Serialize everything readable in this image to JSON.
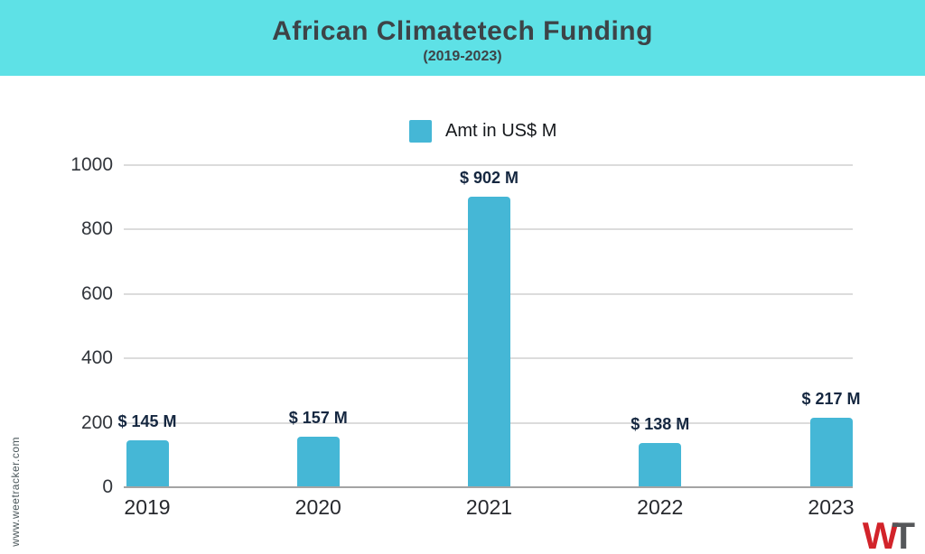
{
  "header": {
    "title": "African Climatetech Funding",
    "subtitle": "(2019-2023)",
    "background_color": "#5ee1e6"
  },
  "legend": {
    "label": "Amt in US$ M",
    "swatch_color": "#45b7d6"
  },
  "chart_data": {
    "type": "bar",
    "title": "African Climatetech Funding",
    "subtitle": "(2019-2023)",
    "categories": [
      "2019",
      "2020",
      "2021",
      "2022",
      "2023"
    ],
    "series": [
      {
        "name": "Amt in US$ M",
        "values": [
          145,
          157,
          902,
          138,
          217
        ],
        "color": "#45b7d6",
        "data_labels": [
          "$ 145 M",
          "$ 157 M",
          "$ 902 M",
          "$ 138 M",
          "$ 217 M"
        ]
      }
    ],
    "xlabel": "",
    "ylabel": "",
    "ylim": [
      0,
      1000
    ],
    "yticks": [
      0,
      200,
      400,
      600,
      800,
      1000
    ],
    "grid": true,
    "legend_position": "top-center",
    "gridline_color": "#dcdcdc",
    "baseline_color": "#a4a4a4"
  },
  "footer": {
    "website": "www.weetracker.com",
    "logo": {
      "letter_w": "W",
      "letter_t": "T",
      "w_color": "#d2232a",
      "t_color": "#55575a"
    }
  }
}
